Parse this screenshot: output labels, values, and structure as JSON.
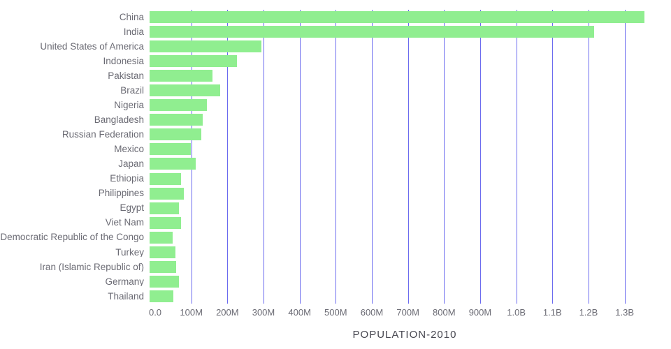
{
  "chart_data": {
    "type": "bar",
    "orientation": "horizontal",
    "title": "POPULATION-2010",
    "xlabel": "POPULATION-2010",
    "ylabel": "",
    "unit": "millions",
    "categories": [
      "China",
      "India",
      "United States of America",
      "Indonesia",
      "Pakistan",
      "Brazil",
      "Nigeria",
      "Bangladesh",
      "Russian Federation",
      "Mexico",
      "Japan",
      "Ethiopia",
      "Philippines",
      "Egypt",
      "Viet Nam",
      "Democratic Republic of the Congo",
      "Turkey",
      "Iran (Islamic Republic of)",
      "Germany",
      "Thailand"
    ],
    "values": [
      1370,
      1231,
      309,
      242,
      174,
      196,
      158,
      148,
      143,
      114,
      128,
      87,
      94,
      82,
      88,
      64,
      72,
      74,
      81,
      66
    ],
    "xlim": [
      0,
      1382
    ],
    "ticks": [
      {
        "value": 0,
        "label": "0.0"
      },
      {
        "value": 100,
        "label": "100M"
      },
      {
        "value": 200,
        "label": "200M"
      },
      {
        "value": 300,
        "label": "300M"
      },
      {
        "value": 400,
        "label": "400M"
      },
      {
        "value": 500,
        "label": "500M"
      },
      {
        "value": 600,
        "label": "600M"
      },
      {
        "value": 700,
        "label": "700M"
      },
      {
        "value": 800,
        "label": "800M"
      },
      {
        "value": 900,
        "label": "900M"
      },
      {
        "value": 1000,
        "label": "1.0B"
      },
      {
        "value": 1100,
        "label": "1.1B"
      },
      {
        "value": 1200,
        "label": "1.2B"
      },
      {
        "value": 1300,
        "label": "1.3B"
      }
    ],
    "grid": true,
    "legend_position": "none",
    "colors": {
      "bar": "#90ee90",
      "gridline": "#6b6bef",
      "label_text": "#6b6b74",
      "tick_text": "#6b6b74",
      "title_text": "#474750",
      "background": "#ffffff"
    }
  }
}
